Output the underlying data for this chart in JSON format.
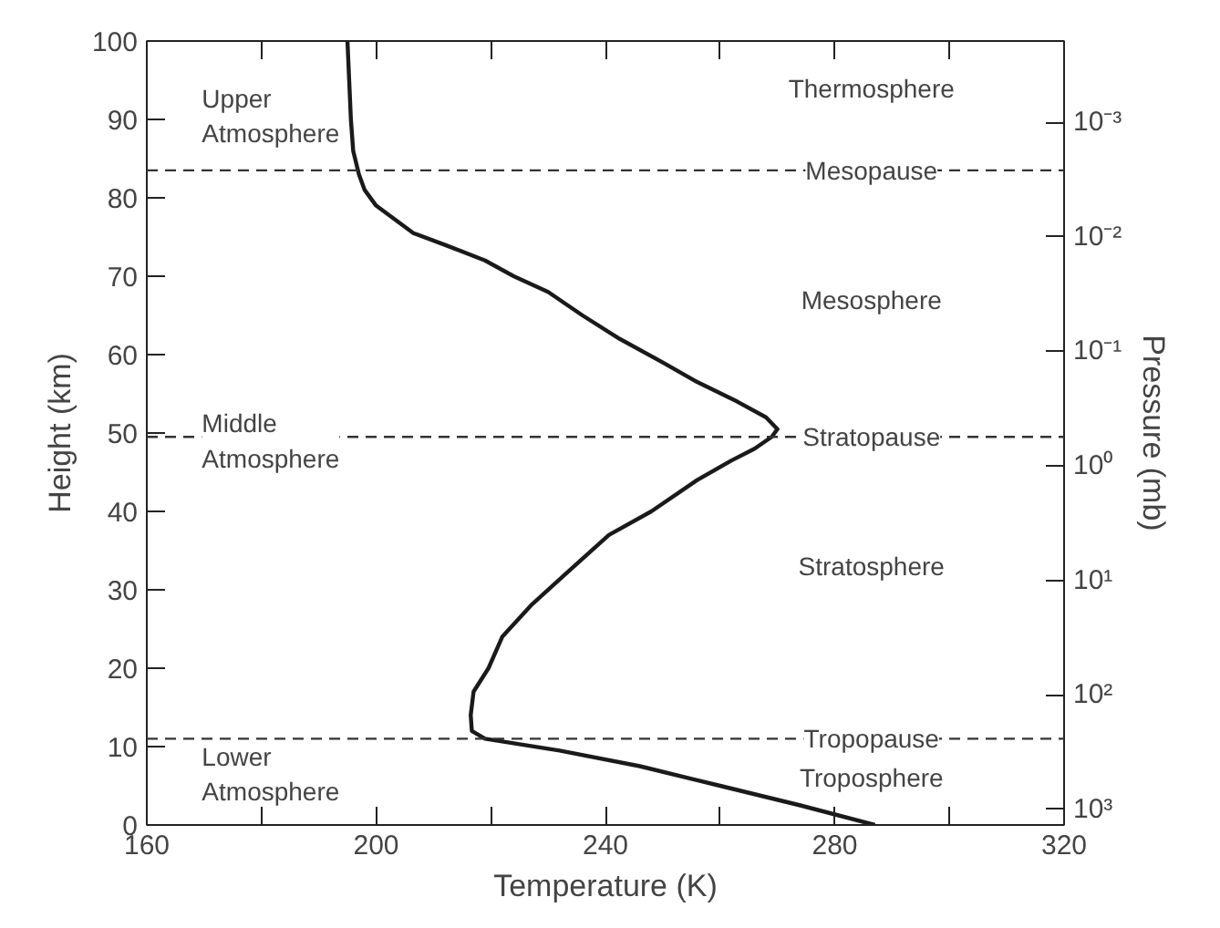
{
  "chart_data": {
    "type": "line",
    "xlabel": "Temperature (K)",
    "ylabel": "Height (km)",
    "y2label": "Pressure (mb)",
    "xlim": [
      160,
      320
    ],
    "ylim": [
      0,
      100
    ],
    "xticks": [
      160,
      {
        "value": 180,
        "label": null
      },
      200,
      {
        "value": 220,
        "label": null
      },
      240,
      {
        "value": 260,
        "label": null
      },
      280,
      {
        "value": 300,
        "label": null
      },
      320
    ],
    "yticks": [
      0,
      10,
      20,
      30,
      40,
      50,
      60,
      70,
      80,
      90,
      100
    ],
    "log": "y2",
    "y2lim": [
      1371,
      0.000195
    ],
    "y2ticks": [
      {
        "value": 0.001,
        "label": "10⁻³"
      },
      {
        "value": 0.01,
        "label": "10⁻²"
      },
      {
        "value": 0.1,
        "label": "10⁻¹"
      },
      {
        "value": 1,
        "label": "10⁰"
      },
      {
        "value": 10,
        "label": "10¹"
      },
      {
        "value": 100,
        "label": "10²"
      },
      {
        "value": 1000,
        "label": "10³"
      }
    ],
    "series": [
      {
        "color": "#1a1a1a",
        "x": [
          287,
          274,
          260,
          246,
          232,
          219,
          216.7,
          216.5,
          217,
          219.6,
          222,
          227,
          233,
          240.6,
          248,
          256,
          262,
          266,
          269,
          270,
          268,
          263,
          256,
          250,
          242.5,
          236,
          230,
          224,
          219,
          212,
          206.5,
          200,
          198,
          197,
          196,
          195.6,
          195.3,
          195
        ],
        "values": [
          0,
          2.5,
          5,
          7.5,
          9.5,
          11,
          12,
          14,
          17,
          20,
          24,
          28,
          32,
          37,
          40,
          44,
          46.5,
          48,
          49.5,
          50.5,
          52,
          54,
          56.5,
          59,
          62,
          65,
          68,
          70,
          72,
          74,
          75.5,
          79,
          81,
          83,
          86,
          90,
          95,
          100
        ]
      }
    ],
    "marker": "none",
    "line_style": "solid",
    "grid": false,
    "ref_lines": [
      {
        "axis": "y",
        "value": 83.5,
        "label": "Mesopause",
        "line_style": "dashed",
        "color": "#333333"
      },
      {
        "axis": "y",
        "value": 49.5,
        "label": "Stratopause",
        "line_style": "dashed",
        "color": "#333333"
      },
      {
        "axis": "y",
        "value": 11,
        "label": "Tropopause",
        "line_style": "dashed",
        "color": "#333333"
      }
    ],
    "annotations": [
      "Upper\nAtmosphere",
      "Middle\nAtmosphere",
      "Lower\nAtmosphere",
      "Thermosphere",
      "Mesosphere",
      "Stratosphere",
      "Troposphere"
    ]
  }
}
